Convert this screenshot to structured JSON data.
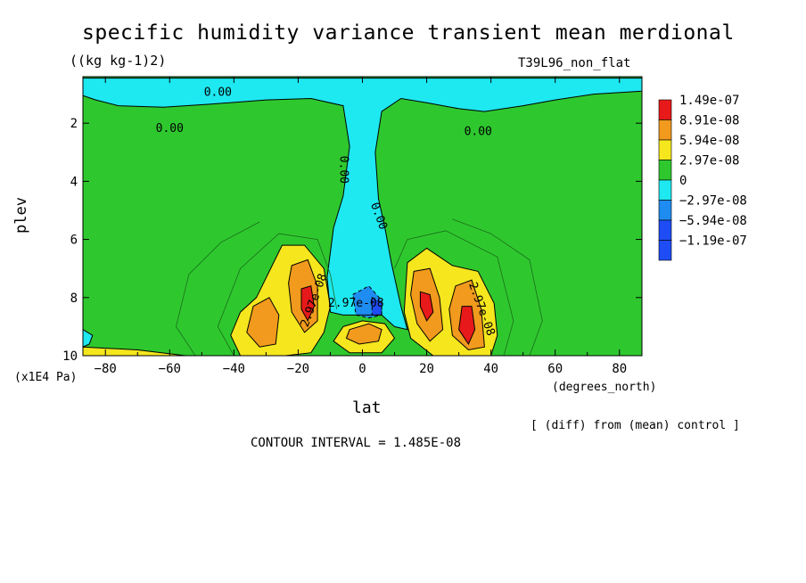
{
  "chart_data": {
    "type": "heatmap",
    "title": "specific humidity variance transient mean merdional",
    "subtitle": "((kg kg-1)2)",
    "run_name": "T39L96_non_flat",
    "xlabel": "lat",
    "x_units": "(degrees_north)",
    "ylabel": "plev",
    "y_units": "(x1E4 Pa)",
    "note": "[ (diff) from (mean) control ]",
    "contour_interval_text": "CONTOUR INTERVAL = 1.485E-08",
    "xlim": [
      -87,
      87
    ],
    "ylim": [
      0.4,
      10
    ],
    "y_reversed": true,
    "x_ticks": [
      -80,
      -60,
      -40,
      -20,
      0,
      20,
      40,
      60,
      80
    ],
    "y_ticks": [
      2,
      4,
      6,
      8,
      10
    ],
    "colorbar": {
      "levels": [
        {
          "label": "1.49e-07",
          "color": "#e8191a"
        },
        {
          "label": "8.91e-08",
          "color": "#f19a1d"
        },
        {
          "label": "5.94e-08",
          "color": "#f5e61e"
        },
        {
          "label": "2.97e-08",
          "color": "#2ec82e"
        },
        {
          "label": "0",
          "color": "#1ee8f0"
        },
        {
          "label": "−2.97e-08",
          "color": "#1e8cf0"
        },
        {
          "label": "−5.94e-08",
          "color": "#1e4cf5"
        },
        {
          "label": "−1.19e-07",
          "color": ""
        }
      ]
    },
    "contour_labels": [
      "0.00",
      "0.00",
      "0.00",
      "0.00",
      "0.00",
      "2.97e-08",
      "2.97e-08",
      "2.97e-08"
    ],
    "background_level_color": "#2ec82e",
    "regions": [
      {
        "kind": "negative",
        "color": "#1ee8f0",
        "pts": [
          [
            -87,
            0.45
          ],
          [
            87,
            0.45
          ],
          [
            87,
            0.9
          ],
          [
            72,
            1.0
          ],
          [
            60,
            1.2
          ],
          [
            50,
            1.4
          ],
          [
            38,
            1.6
          ],
          [
            30,
            1.5
          ],
          [
            20,
            1.3
          ],
          [
            12,
            1.15
          ],
          [
            6,
            1.6
          ],
          [
            4,
            3
          ],
          [
            5,
            4.6
          ],
          [
            7,
            5.6
          ],
          [
            9,
            6.8
          ],
          [
            12,
            8.3
          ],
          [
            14,
            9.1
          ],
          [
            10,
            9.0
          ],
          [
            6,
            8.6
          ],
          [
            2,
            8.6
          ],
          [
            -2,
            8.6
          ],
          [
            -6,
            8.6
          ],
          [
            -10,
            8.5
          ],
          [
            -11,
            7.3
          ],
          [
            -9,
            5.6
          ],
          [
            -6,
            4.5
          ],
          [
            -4,
            2.8
          ],
          [
            -6,
            1.4
          ],
          [
            -16,
            1.15
          ],
          [
            -30,
            1.2
          ],
          [
            -48,
            1.35
          ],
          [
            -62,
            1.45
          ],
          [
            -76,
            1.4
          ],
          [
            -83,
            1.2
          ],
          [
            -87,
            1.05
          ]
        ]
      },
      {
        "kind": "positive",
        "color": "#f5e61e",
        "pts": [
          [
            -33,
            8.0
          ],
          [
            -25,
            6.2
          ],
          [
            -18,
            6.2
          ],
          [
            -12,
            7.0
          ],
          [
            -10,
            8.3
          ],
          [
            -12,
            9.2
          ],
          [
            -16,
            9.9
          ],
          [
            -24,
            10
          ],
          [
            -38,
            10
          ],
          [
            -41,
            9.3
          ],
          [
            -38,
            8.5
          ]
        ]
      },
      {
        "kind": "positive",
        "color": "#f5e61e",
        "pts": [
          [
            14,
            6.8
          ],
          [
            20,
            6.3
          ],
          [
            28,
            6.9
          ],
          [
            36,
            7.1
          ],
          [
            41,
            8.2
          ],
          [
            42,
            9.3
          ],
          [
            40,
            10
          ],
          [
            22,
            10
          ],
          [
            15,
            9.4
          ],
          [
            13,
            8.5
          ]
        ]
      },
      {
        "kind": "positive",
        "color": "#f5e61e",
        "pts": [
          [
            -6,
            9.0
          ],
          [
            0,
            8.8
          ],
          [
            7,
            8.9
          ],
          [
            10,
            9.4
          ],
          [
            6,
            9.9
          ],
          [
            -4,
            9.9
          ],
          [
            -9,
            9.5
          ]
        ]
      },
      {
        "kind": "positive",
        "color": "#f5e61e",
        "pts": [
          [
            -87,
            9.7
          ],
          [
            -70,
            9.8
          ],
          [
            -55,
            10
          ],
          [
            -87,
            10
          ]
        ]
      },
      {
        "kind": "negative",
        "color": "#1ee8f0",
        "pts": [
          [
            -87,
            9.1
          ],
          [
            -84,
            9.3
          ],
          [
            -85,
            9.6
          ],
          [
            -87,
            9.7
          ]
        ]
      },
      {
        "kind": "positive",
        "color": "#f19a1d",
        "pts": [
          [
            -34,
            8.3
          ],
          [
            -29,
            8.0
          ],
          [
            -26,
            8.6
          ],
          [
            -27,
            9.6
          ],
          [
            -32,
            9.7
          ],
          [
            -36,
            9.2
          ]
        ]
      },
      {
        "kind": "positive",
        "color": "#f19a1d",
        "pts": [
          [
            -22,
            6.9
          ],
          [
            -17,
            6.7
          ],
          [
            -14,
            7.6
          ],
          [
            -14,
            8.8
          ],
          [
            -18,
            9.2
          ],
          [
            -22,
            8.5
          ],
          [
            -23,
            7.5
          ]
        ]
      },
      {
        "kind": "positive",
        "color": "#f19a1d",
        "pts": [
          [
            16,
            7.1
          ],
          [
            21,
            7.0
          ],
          [
            24,
            8.0
          ],
          [
            25,
            9.1
          ],
          [
            21,
            9.5
          ],
          [
            17,
            8.9
          ],
          [
            15,
            7.9
          ]
        ]
      },
      {
        "kind": "positive",
        "color": "#f19a1d",
        "pts": [
          [
            29,
            7.6
          ],
          [
            34,
            7.4
          ],
          [
            37,
            8.4
          ],
          [
            38,
            9.7
          ],
          [
            33,
            9.8
          ],
          [
            28,
            9.3
          ],
          [
            27,
            8.4
          ]
        ]
      },
      {
        "kind": "positive",
        "color": "#f19a1d",
        "pts": [
          [
            -4,
            9.1
          ],
          [
            2,
            8.9
          ],
          [
            6,
            9.1
          ],
          [
            5,
            9.5
          ],
          [
            -1,
            9.6
          ],
          [
            -5,
            9.4
          ]
        ]
      },
      {
        "kind": "positive",
        "color": "#e8191a",
        "pts": [
          [
            -19,
            7.7
          ],
          [
            -16,
            7.6
          ],
          [
            -15,
            8.3
          ],
          [
            -17,
            8.8
          ],
          [
            -19,
            8.4
          ]
        ]
      },
      {
        "kind": "positive",
        "color": "#e8191a",
        "pts": [
          [
            18,
            7.8
          ],
          [
            21,
            7.9
          ],
          [
            22,
            8.5
          ],
          [
            20,
            8.8
          ],
          [
            18,
            8.3
          ]
        ]
      },
      {
        "kind": "positive",
        "color": "#e8191a",
        "pts": [
          [
            31,
            8.3
          ],
          [
            34,
            8.3
          ],
          [
            35,
            9.1
          ],
          [
            33,
            9.6
          ],
          [
            30,
            9.1
          ]
        ]
      },
      {
        "kind": "negative",
        "color": "#1e8cf0",
        "pts": [
          [
            -3,
            7.9
          ],
          [
            2,
            7.6
          ],
          [
            6,
            8.1
          ],
          [
            6,
            8.6
          ],
          [
            2,
            8.7
          ],
          [
            -2,
            8.6
          ]
        ]
      },
      {
        "kind": "negative",
        "color": "#1e4cf5",
        "pts": [
          [
            3,
            8.0
          ],
          [
            6,
            8.2
          ],
          [
            6,
            8.6
          ],
          [
            3,
            8.6
          ]
        ]
      }
    ]
  }
}
